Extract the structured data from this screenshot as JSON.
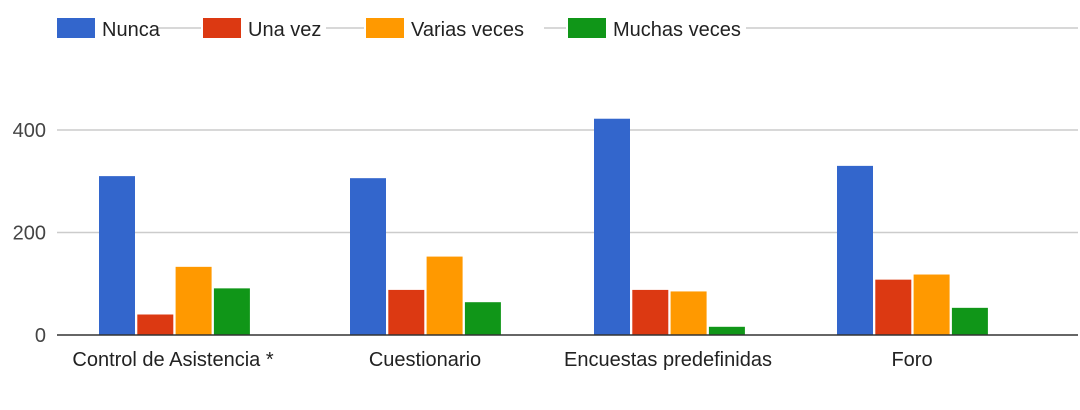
{
  "chart_data": {
    "type": "bar",
    "categories": [
      "Control de Asistencia *",
      "Cuestionario",
      "Encuestas predefinidas",
      "Foro"
    ],
    "series": [
      {
        "name": "Nunca",
        "color": "#3366cc",
        "values": [
          310,
          306,
          422,
          330
        ]
      },
      {
        "name": "Una vez",
        "color": "#dc3912",
        "values": [
          40,
          88,
          88,
          108
        ]
      },
      {
        "name": "Varias veces",
        "color": "#ff9900",
        "values": [
          133,
          153,
          85,
          118
        ]
      },
      {
        "name": "Muchas veces",
        "color": "#109618",
        "values": [
          91,
          64,
          16,
          53
        ]
      }
    ],
    "yticks": [
      0,
      200,
      400
    ],
    "ylim": [
      0,
      530
    ],
    "legend_position": "top-left",
    "grid": true
  }
}
